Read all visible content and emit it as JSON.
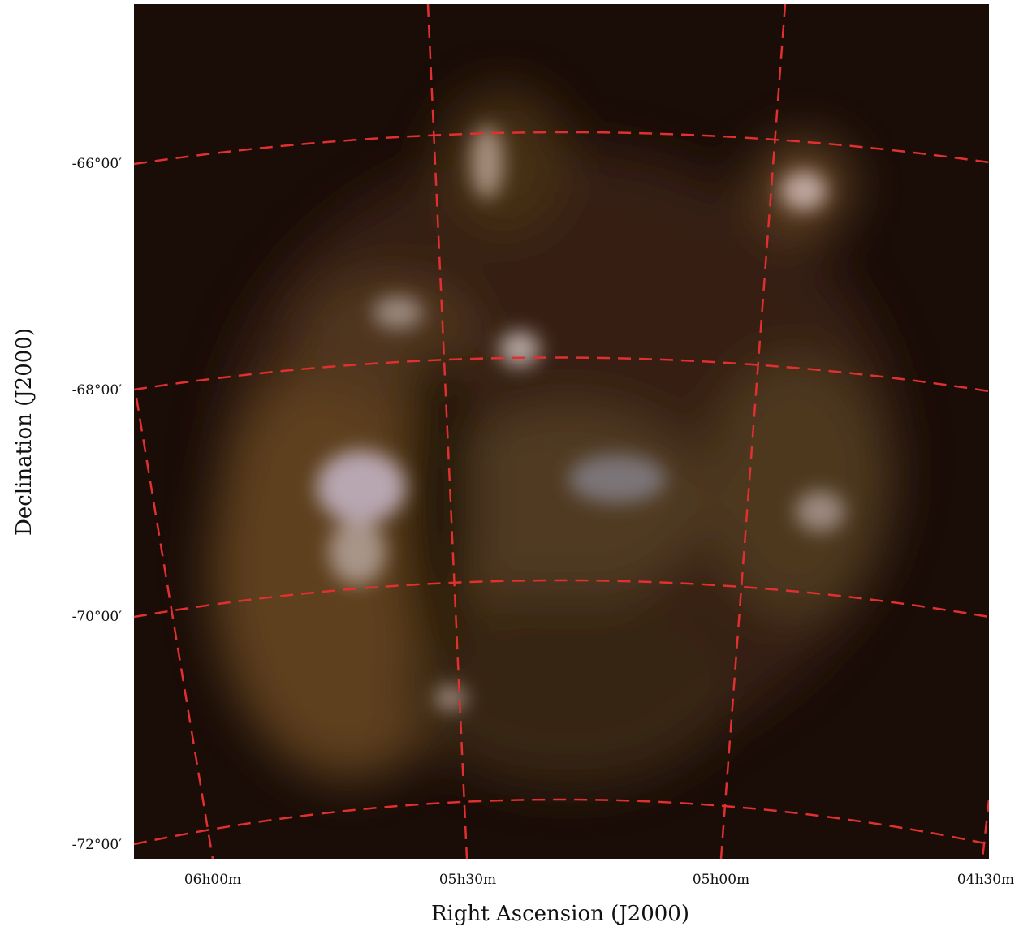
{
  "figure": {
    "x_axis_title": "Right Ascension (J2000)",
    "y_axis_title": "Declination (J2000)",
    "x_tick_labels": [
      "06h00m",
      "05h30m",
      "05h00m",
      "04h30m"
    ],
    "y_tick_labels": [
      "-66°00′",
      "-68°00′",
      "-70°00′",
      "-72°00′"
    ]
  }
}
